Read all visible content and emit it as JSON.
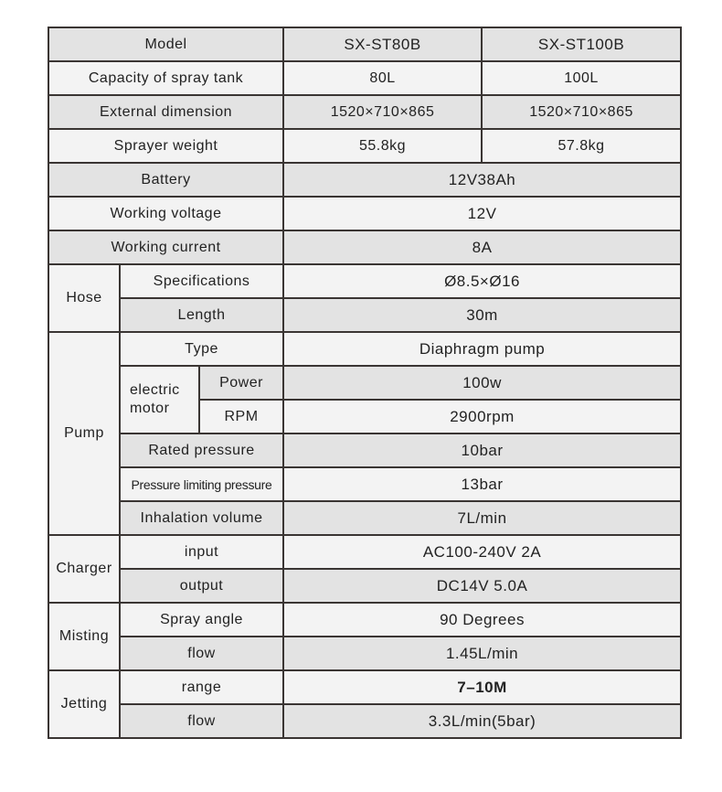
{
  "header": {
    "label": "Model",
    "models": [
      "SX-ST80B",
      "SX-ST100B"
    ]
  },
  "rows_two": [
    {
      "label": "Capacity of spray tank",
      "values": [
        "80L",
        "100L"
      ]
    },
    {
      "label": "External dimension",
      "values": [
        "1520×710×865",
        "1520×710×865"
      ]
    },
    {
      "label": "Sprayer weight",
      "values": [
        "55.8kg",
        "57.8kg"
      ]
    }
  ],
  "rows_single": [
    {
      "label": "Battery",
      "value": "12V38Ah"
    },
    {
      "label": "Working voltage",
      "value": "12V"
    },
    {
      "label": "Working current",
      "value": "8A"
    }
  ],
  "hose": {
    "label": "Hose",
    "items": [
      {
        "label": "Specifications",
        "value": "Ø8.5×Ø16"
      },
      {
        "label": "Length",
        "value": "30m"
      }
    ]
  },
  "pump": {
    "label": "Pump",
    "type": {
      "label": "Type",
      "value": "Diaphragm pump"
    },
    "motor": {
      "label": "electric motor",
      "items": [
        {
          "label": "Power",
          "value": "100w"
        },
        {
          "label": "RPM",
          "value": "2900rpm"
        }
      ]
    },
    "items": [
      {
        "label": "Rated pressure",
        "value": "10bar"
      },
      {
        "label": "Pressure limiting pressure",
        "value": "13bar"
      },
      {
        "label": "Inhalation volume",
        "value": "7L/min"
      }
    ]
  },
  "charger": {
    "label": "Charger",
    "items": [
      {
        "label": "input",
        "value": "AC100-240V 2A"
      },
      {
        "label": "output",
        "value": "DC14V 5.0A"
      }
    ]
  },
  "misting": {
    "label": "Misting",
    "items": [
      {
        "label": "Spray angle",
        "value": "90 Degrees"
      },
      {
        "label": "flow",
        "value": "1.45L/min"
      }
    ]
  },
  "jetting": {
    "label": "Jetting",
    "items": [
      {
        "label": "range",
        "value": "7–10M"
      },
      {
        "label": "flow",
        "value": "3.3L/min(5bar)"
      }
    ]
  }
}
